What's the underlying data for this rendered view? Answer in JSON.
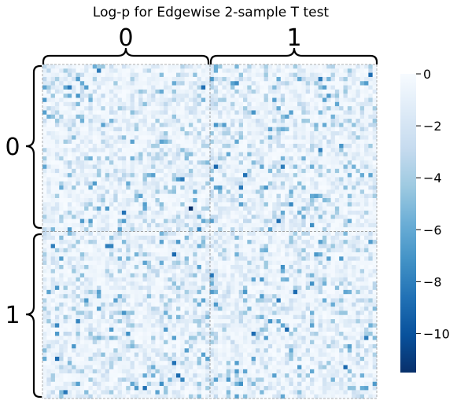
{
  "chart_data": {
    "type": "heatmap",
    "title": "Log-p for Edgewise 2-sample T test",
    "xlabel": "",
    "ylabel": "",
    "x_block_labels": [
      "0",
      "1"
    ],
    "y_block_labels": [
      "0",
      "1"
    ],
    "n_nodes": 80,
    "nodes_per_block": 40,
    "value_range": [
      -11.5,
      0
    ],
    "colormap": "Blues_r",
    "colorbar": {
      "ticks": [
        0,
        -2,
        -4,
        -6,
        -8,
        -10
      ],
      "tick_labels": [
        "0",
        "−2",
        "−4",
        "−6",
        "−8",
        "−10"
      ]
    },
    "min_cell": {
      "row": 34,
      "col": 35,
      "value": -11.4
    },
    "grid": false,
    "block_dividers": "dashed gray lines between blocks",
    "legend_placement": "right (colorbar)"
  }
}
